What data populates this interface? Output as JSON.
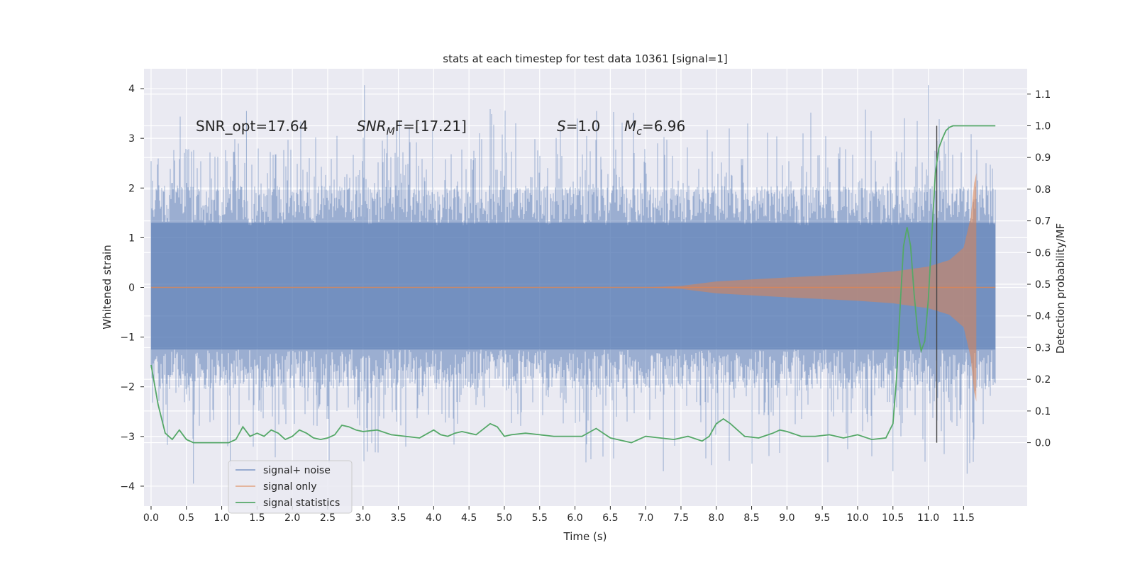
{
  "chart_data": {
    "type": "line",
    "title": "stats at each timestep for test data 10361 [signal=1]",
    "xlabel": "Time (s)",
    "ylabel": "Whitened strain",
    "y2label": "Detection probability/MF",
    "xlim": [
      -0.1,
      12.4
    ],
    "ylim": [
      -4.4,
      4.4
    ],
    "y2lim": [
      -0.2,
      1.18
    ],
    "x_ticks": [
      0.0,
      0.5,
      1.0,
      1.5,
      2.0,
      2.5,
      3.0,
      3.5,
      4.0,
      4.5,
      5.0,
      5.5,
      6.0,
      6.5,
      7.0,
      7.5,
      8.0,
      8.5,
      9.0,
      9.5,
      10.0,
      10.5,
      11.0,
      11.5
    ],
    "x_tick_labels": [
      "0.0",
      "0.5",
      "1.0",
      "1.5",
      "2.0",
      "2.5",
      "3.0",
      "3.5",
      "4.0",
      "4.5",
      "5.0",
      "5.5",
      "6.0",
      "6.5",
      "7.0",
      "7.5",
      "8.0",
      "8.5",
      "9.0",
      "9.5",
      "10.0",
      "10.5",
      "11.0",
      "11.5"
    ],
    "y_ticks": [
      4,
      3,
      2,
      1,
      0,
      -1,
      -2,
      -3,
      -4
    ],
    "y_tick_labels": [
      "4",
      "3",
      "2",
      "1",
      "0",
      "−1",
      "−2",
      "−3",
      "−4"
    ],
    "y2_ticks": [
      1.1,
      1.0,
      0.9,
      0.8,
      0.7,
      0.6,
      0.5,
      0.4,
      0.3,
      0.2,
      0.1,
      0.0
    ],
    "y2_tick_labels": [
      "1.1",
      "1.0",
      "0.9",
      "0.8",
      "0.7",
      "0.6",
      "0.5",
      "0.4",
      "0.3",
      "0.2",
      "0.1",
      "0.0"
    ],
    "grid": true,
    "legend_position": "lower-left",
    "annotations": {
      "snr_opt": "SNR_opt=17.64",
      "snr_mf_sym": "SNR",
      "snr_mf_sub": "M",
      "snr_mf_rest": "F=[17.21]",
      "s_sym": "S",
      "s_rest": "=1.0",
      "mc_sym": "M",
      "mc_sub": "c",
      "mc_rest": "=6.96"
    },
    "vline_x": 11.12,
    "duration": 11.95,
    "series": [
      {
        "name": "signal+ noise",
        "color": "#4c72b0",
        "axis": "left",
        "note_core_band": [
          -1.25,
          1.3
        ],
        "typical_extremes": [
          -2.6,
          2.6
        ],
        "max": 4.07,
        "min": -3.95
      },
      {
        "name": "signal only",
        "color": "#dd8452",
        "axis": "left",
        "envelope_x": [
          0.0,
          7.0,
          7.5,
          8.0,
          9.0,
          10.0,
          10.5,
          11.0,
          11.3,
          11.5,
          11.6,
          11.65,
          11.68
        ],
        "envelope_y": [
          0.0,
          0.0,
          0.03,
          0.12,
          0.2,
          0.27,
          0.32,
          0.42,
          0.55,
          0.8,
          1.4,
          2.1,
          2.3
        ]
      },
      {
        "name": "signal statistics",
        "color": "#55a868",
        "axis": "right",
        "x": [
          0.0,
          0.1,
          0.2,
          0.3,
          0.4,
          0.5,
          0.6,
          0.7,
          0.8,
          0.9,
          1.0,
          1.1,
          1.2,
          1.3,
          1.4,
          1.5,
          1.6,
          1.7,
          1.8,
          1.9,
          2.0,
          2.1,
          2.2,
          2.3,
          2.4,
          2.5,
          2.6,
          2.7,
          2.8,
          2.9,
          3.0,
          3.2,
          3.4,
          3.6,
          3.8,
          4.0,
          4.1,
          4.2,
          4.3,
          4.4,
          4.6,
          4.8,
          4.9,
          5.0,
          5.1,
          5.3,
          5.5,
          5.7,
          5.9,
          6.1,
          6.3,
          6.4,
          6.5,
          6.6,
          6.8,
          7.0,
          7.2,
          7.4,
          7.6,
          7.8,
          7.9,
          8.0,
          8.1,
          8.2,
          8.3,
          8.4,
          8.6,
          8.8,
          8.9,
          9.0,
          9.2,
          9.4,
          9.6,
          9.8,
          10.0,
          10.2,
          10.4,
          10.5,
          10.55,
          10.6,
          10.65,
          10.7,
          10.75,
          10.8,
          10.85,
          10.9,
          10.95,
          11.0,
          11.05,
          11.1,
          11.15,
          11.2,
          11.25,
          11.3,
          11.35,
          11.4,
          11.5,
          11.7,
          11.9,
          11.95
        ],
        "values": [
          0.245,
          0.12,
          0.03,
          0.01,
          0.04,
          0.01,
          0.0,
          0.0,
          0.0,
          0.0,
          0.0,
          0.0,
          0.01,
          0.05,
          0.02,
          0.03,
          0.02,
          0.04,
          0.03,
          0.01,
          0.02,
          0.04,
          0.03,
          0.015,
          0.01,
          0.015,
          0.025,
          0.055,
          0.05,
          0.04,
          0.035,
          0.04,
          0.025,
          0.02,
          0.015,
          0.04,
          0.025,
          0.02,
          0.03,
          0.035,
          0.025,
          0.06,
          0.05,
          0.02,
          0.025,
          0.03,
          0.025,
          0.02,
          0.02,
          0.02,
          0.045,
          0.03,
          0.015,
          0.01,
          0.0,
          0.02,
          0.015,
          0.01,
          0.02,
          0.005,
          0.02,
          0.06,
          0.075,
          0.06,
          0.04,
          0.02,
          0.015,
          0.03,
          0.04,
          0.035,
          0.02,
          0.02,
          0.025,
          0.015,
          0.025,
          0.01,
          0.015,
          0.06,
          0.2,
          0.42,
          0.62,
          0.68,
          0.62,
          0.47,
          0.35,
          0.29,
          0.32,
          0.45,
          0.65,
          0.85,
          0.93,
          0.96,
          0.985,
          0.995,
          1.0,
          1.0,
          1.0,
          1.0,
          1.0,
          1.0
        ]
      }
    ]
  }
}
